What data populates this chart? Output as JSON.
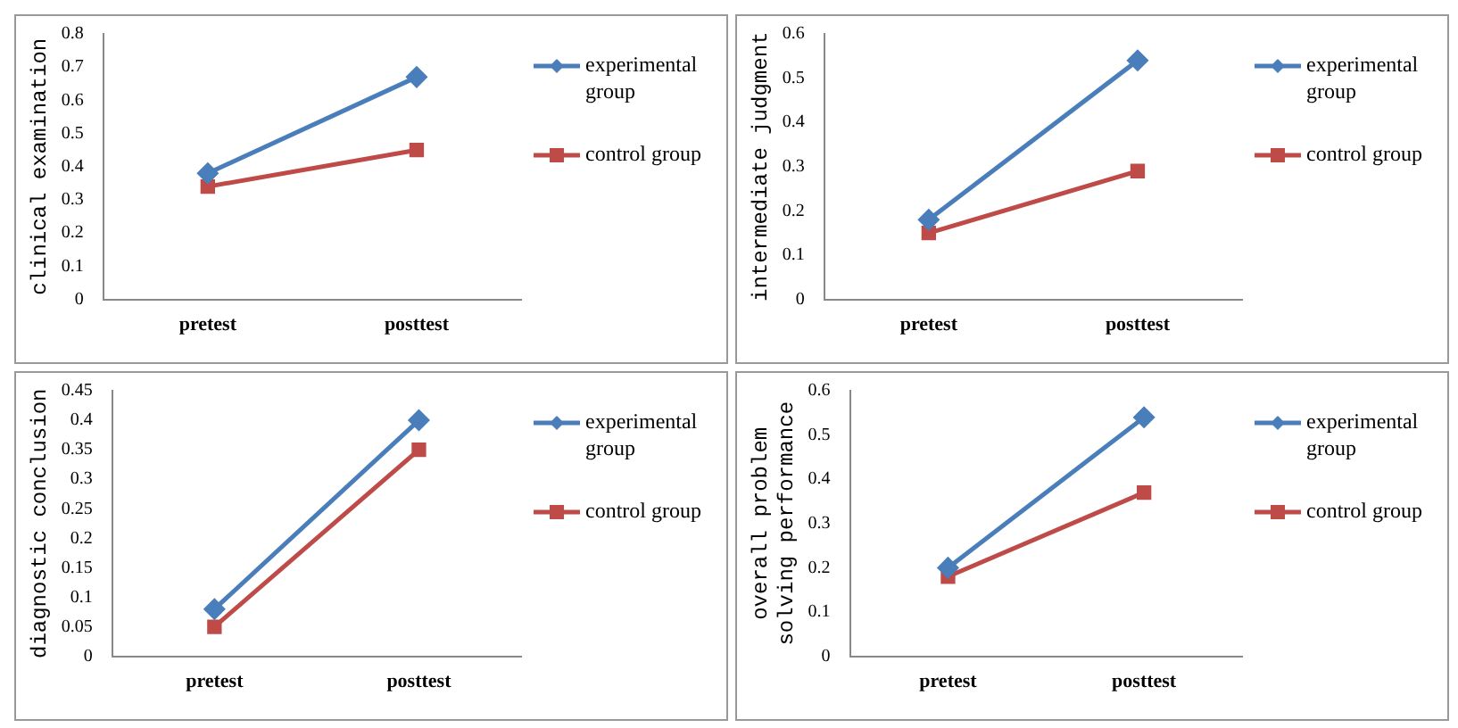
{
  "chart_data": [
    {
      "type": "line",
      "ylabel": "clinical examination",
      "categories": [
        "pretest",
        "posttest"
      ],
      "ylim": [
        0,
        0.8
      ],
      "yticks": [
        0,
        0.1,
        0.2,
        0.3,
        0.4,
        0.5,
        0.6,
        0.7,
        0.8
      ],
      "grid": false,
      "legend": "right",
      "series": [
        {
          "name": "experimental group",
          "color": "#4a7ebb",
          "marker": "diamond",
          "values": [
            0.38,
            0.67
          ]
        },
        {
          "name": "control group",
          "color": "#be4b48",
          "marker": "square",
          "values": [
            0.34,
            0.45
          ]
        }
      ]
    },
    {
      "type": "line",
      "ylabel": "intermediate judgment",
      "categories": [
        "pretest",
        "posttest"
      ],
      "ylim": [
        0,
        0.6
      ],
      "yticks": [
        0,
        0.1,
        0.2,
        0.3,
        0.4,
        0.5,
        0.6
      ],
      "grid": false,
      "legend": "right",
      "series": [
        {
          "name": "experimental group",
          "color": "#4a7ebb",
          "marker": "diamond",
          "values": [
            0.18,
            0.54
          ]
        },
        {
          "name": "control group",
          "color": "#be4b48",
          "marker": "square",
          "values": [
            0.15,
            0.29
          ]
        }
      ]
    },
    {
      "type": "line",
      "ylabel": "diagnostic conclusion",
      "categories": [
        "pretest",
        "posttest"
      ],
      "ylim": [
        0,
        0.45
      ],
      "yticks": [
        0,
        0.05,
        0.1,
        0.15,
        0.2,
        0.25,
        0.3,
        0.35,
        0.4,
        0.45
      ],
      "grid": false,
      "legend": "right",
      "series": [
        {
          "name": "experimental group",
          "color": "#4a7ebb",
          "marker": "diamond",
          "values": [
            0.08,
            0.4
          ]
        },
        {
          "name": "control group",
          "color": "#be4b48",
          "marker": "square",
          "values": [
            0.05,
            0.35
          ]
        }
      ]
    },
    {
      "type": "line",
      "ylabel": "overall problem solving performance",
      "categories": [
        "pretest",
        "posttest"
      ],
      "ylim": [
        0,
        0.6
      ],
      "yticks": [
        0,
        0.1,
        0.2,
        0.3,
        0.4,
        0.5,
        0.6
      ],
      "grid": false,
      "legend": "right",
      "series": [
        {
          "name": "experimental group",
          "color": "#4a7ebb",
          "marker": "diamond",
          "values": [
            0.2,
            0.54
          ]
        },
        {
          "name": "control group",
          "color": "#be4b48",
          "marker": "square",
          "values": [
            0.18,
            0.37
          ]
        }
      ]
    }
  ]
}
